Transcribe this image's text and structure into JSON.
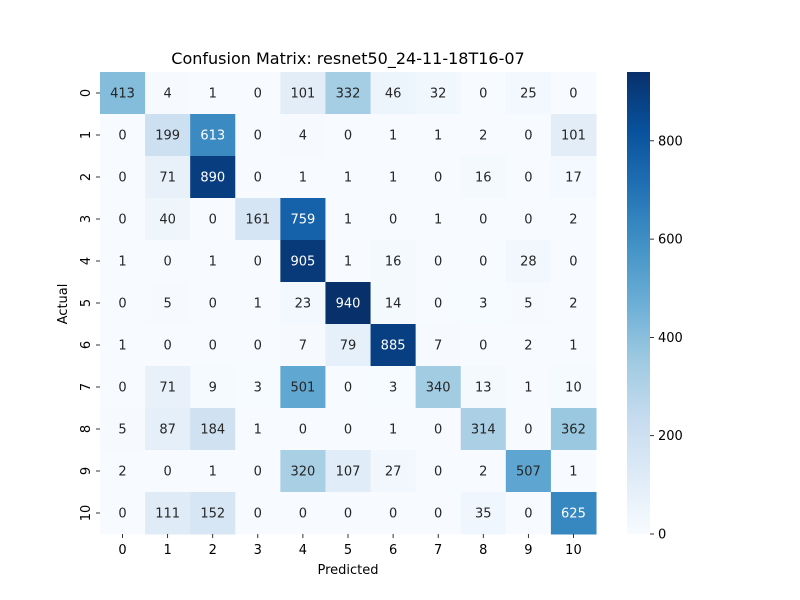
{
  "chart_data": {
    "type": "heatmap",
    "title": "Confusion Matrix: resnet50_24-11-18T16-07",
    "xlabel": "Predicted",
    "ylabel": "Actual",
    "x_categories": [
      "0",
      "1",
      "2",
      "3",
      "4",
      "5",
      "6",
      "7",
      "8",
      "9",
      "10"
    ],
    "y_categories": [
      "0",
      "1",
      "2",
      "3",
      "4",
      "5",
      "6",
      "7",
      "8",
      "9",
      "10"
    ],
    "values": [
      [
        413,
        4,
        1,
        0,
        101,
        332,
        46,
        32,
        0,
        25,
        0
      ],
      [
        0,
        199,
        613,
        0,
        4,
        0,
        1,
        1,
        2,
        0,
        101
      ],
      [
        0,
        71,
        890,
        0,
        1,
        1,
        1,
        0,
        16,
        0,
        17
      ],
      [
        0,
        40,
        0,
        161,
        759,
        1,
        0,
        1,
        0,
        0,
        2
      ],
      [
        1,
        0,
        1,
        0,
        905,
        1,
        16,
        0,
        0,
        28,
        0
      ],
      [
        0,
        5,
        0,
        1,
        23,
        940,
        14,
        0,
        3,
        5,
        2
      ],
      [
        1,
        0,
        0,
        0,
        7,
        79,
        885,
        7,
        0,
        2,
        1
      ],
      [
        0,
        71,
        9,
        3,
        501,
        0,
        3,
        340,
        13,
        1,
        10
      ],
      [
        5,
        87,
        184,
        1,
        0,
        0,
        1,
        0,
        314,
        0,
        362
      ],
      [
        2,
        0,
        1,
        0,
        320,
        107,
        27,
        0,
        2,
        507,
        1
      ],
      [
        0,
        111,
        152,
        0,
        0,
        0,
        0,
        0,
        35,
        0,
        625
      ]
    ],
    "colormap": "Blues",
    "colorbar": {
      "range": [
        0,
        940
      ],
      "ticks": [
        0,
        200,
        400,
        600,
        800
      ]
    }
  }
}
